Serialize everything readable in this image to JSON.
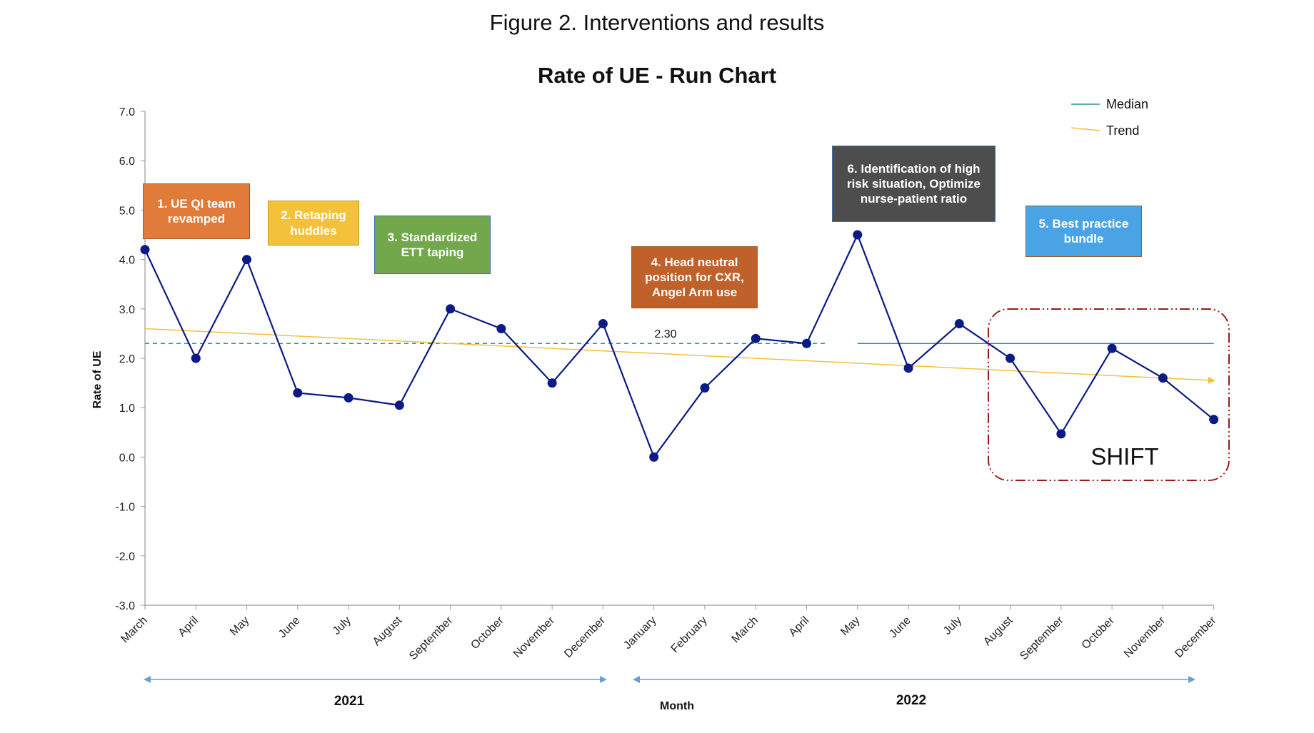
{
  "figure_title": "Figure 2. Interventions and results",
  "chart_data": {
    "type": "line",
    "title": "Rate of UE - Run Chart",
    "xlabel": "Month",
    "ylabel": "Rate of UE",
    "ylim": [
      -3.0,
      7.0
    ],
    "yticks": [
      "7.0",
      "6.0",
      "5.0",
      "4.0",
      "3.0",
      "2.0",
      "1.0",
      "0.0",
      "-1.0",
      "-2.0",
      "-3.0"
    ],
    "categories": [
      "March",
      "April",
      "May",
      "June",
      "July",
      "August",
      "September",
      "October",
      "November",
      "December",
      "January",
      "February",
      "March",
      "April",
      "May",
      "June",
      "July",
      "August",
      "September",
      "October",
      "November",
      "December"
    ],
    "series": [
      {
        "values": [
          4.2,
          2.0,
          4.0,
          1.3,
          1.2,
          1.05,
          3.0,
          2.6,
          1.5,
          2.7,
          0.0,
          1.4,
          2.4,
          2.3,
          4.5,
          1.8,
          2.7,
          2.0,
          0.47,
          2.2,
          1.6,
          0.76
        ],
        "color": "#0b1a85"
      }
    ],
    "median": {
      "name": "Median",
      "value": 2.3,
      "label": "2.30",
      "color": "#2a8e9a"
    },
    "trend": {
      "name": "Trend",
      "start": 2.6,
      "end": 1.55,
      "color": "#f3c13a"
    },
    "years": [
      "2021",
      "2022"
    ],
    "legend": "top-right",
    "grid": false
  },
  "annotations": [
    {
      "text": "1. UE QI team revamped",
      "color": "#e07b39"
    },
    {
      "text": "2. Retaping huddles",
      "color": "#f3c13a"
    },
    {
      "text": "3. Standardized ETT taping",
      "color": "#72a84b"
    },
    {
      "text": "4. Head neutral position for CXR, Angel Arm use",
      "color": "#c0602a"
    },
    {
      "text": "6. Identification of high risk situation, Optimize nurse-patient ratio",
      "color": "#4d4d4d"
    },
    {
      "text": "5. Best practice bundle",
      "color": "#4aa3e5"
    }
  ],
  "shift_label": "SHIFT"
}
